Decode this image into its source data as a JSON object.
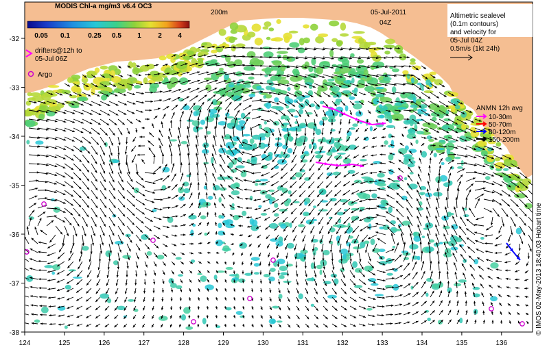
{
  "title": {
    "date": "05-Jul-2011",
    "time": "04Z",
    "depth_label": "200m"
  },
  "colorbar": {
    "title": "MODIS Chl-a mg/m3 v6.4 OC3",
    "ticks": [
      "0.05",
      "0.1",
      "0.25",
      "0.5",
      "1",
      "2",
      "4"
    ],
    "colors": [
      "#0a0a8c",
      "#1a3cc8",
      "#1f8fe0",
      "#27c7d6",
      "#3cd08a",
      "#8ed23b",
      "#e5e032",
      "#f2a21e",
      "#d6401a",
      "#8c1010"
    ]
  },
  "left_notes": {
    "drifters_line1": "drifters@12h to",
    "drifters_line2": "05-Jul 06Z",
    "argo": "Argo"
  },
  "right_notes": {
    "lines": [
      "Altimetric sealevel",
      "(0.1m contours)",
      "and velocity for",
      "05-Jul 04Z",
      "0.5m/s (1kt 24h)"
    ]
  },
  "anmn": {
    "title": "ANMN 12h avg",
    "items": [
      {
        "label": "10-30m",
        "color": "#ff00ff"
      },
      {
        "label": "50-70m",
        "color": "#ff0000"
      },
      {
        "label": "80-120m",
        "color": "#0000ff"
      },
      {
        "label": "150-200m",
        "color": "#000000"
      }
    ]
  },
  "credit": "© IMOS 02-May-2013 18:40:03 Hobart time",
  "axes": {
    "lon_ticks": [
      "124",
      "125",
      "126",
      "127",
      "128",
      "129",
      "130",
      "131",
      "132",
      "133",
      "134",
      "135",
      "136"
    ],
    "lat_ticks": [
      "-32",
      "-33",
      "-34",
      "-35",
      "-36",
      "-37",
      "-38"
    ]
  },
  "colors": {
    "land": "#f5be92",
    "ocean": "#ffffff",
    "argo": "#cc00cc",
    "drifter": "#ff00ff",
    "arrow": "#000000"
  }
}
